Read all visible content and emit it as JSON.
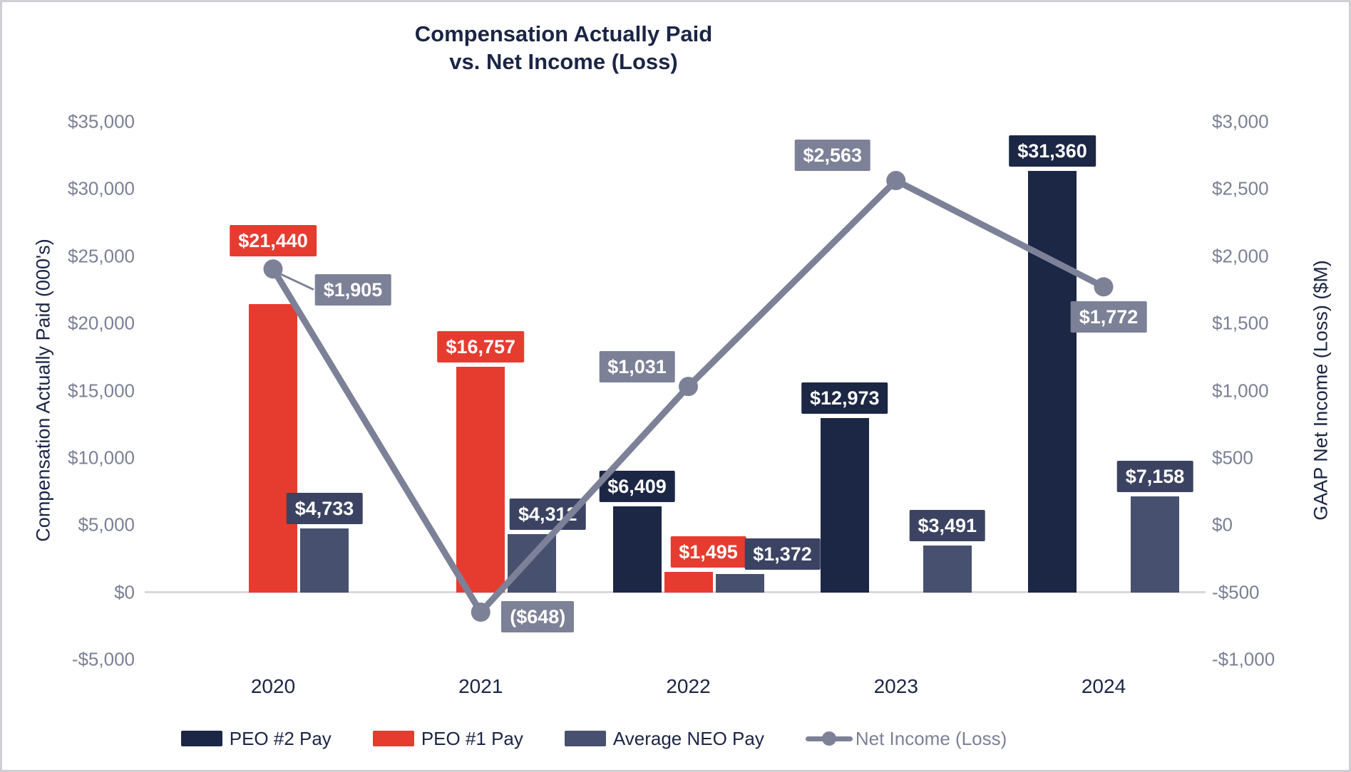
{
  "chart_data": {
    "type": "bar+line",
    "title": {
      "line1": "Compensation Actually Paid",
      "line2": "vs. Net Income (Loss)"
    },
    "categories": [
      "2020",
      "2021",
      "2022",
      "2023",
      "2024"
    ],
    "axes": {
      "left": {
        "title": "Compensation Actually Paid (000's)",
        "min": -5000,
        "max": 35000,
        "step": 5000,
        "tick_labels": [
          "$35,000",
          "$30,000",
          "$25,000",
          "$20,000",
          "$15,000",
          "$10,000",
          "$5,000",
          "$0",
          "-$5,000"
        ]
      },
      "right": {
        "title": "GAAP Net Income (Loss) ($M)",
        "min": -1000,
        "max": 3000,
        "step": 500,
        "tick_labels": [
          "$3,000",
          "$2,500",
          "$2,000",
          "$1,500",
          "$1,000",
          "$500",
          "$0",
          "-$500",
          "-$1,000"
        ]
      }
    },
    "series": [
      {
        "name": "PEO #2 Pay",
        "type": "bar",
        "axis": "left",
        "color": "#1c2745",
        "label_bg": "#1c2745",
        "values": [
          null,
          null,
          6409,
          12973,
          31360
        ],
        "value_labels": [
          null,
          null,
          "$6,409",
          "$12,973",
          "$31,360"
        ]
      },
      {
        "name": "PEO #1 Pay",
        "type": "bar",
        "axis": "left",
        "color": "#e63c30",
        "label_bg": "#e63c30",
        "values": [
          21440,
          16757,
          1495,
          null,
          null
        ],
        "value_labels": [
          "$21,440",
          "$16,757",
          "$1,495",
          null,
          null
        ]
      },
      {
        "name": "Average NEO Pay",
        "type": "bar",
        "axis": "left",
        "color": "#47506e",
        "label_bg": "#3c4362",
        "values": [
          4733,
          4312,
          1372,
          3491,
          7158
        ],
        "value_labels": [
          "$4,733",
          "$4,312",
          "$1,372",
          "$3,491",
          "$7,158"
        ]
      },
      {
        "name": "Net Income (Loss)",
        "type": "line",
        "axis": "right",
        "color": "#7d8197",
        "label_bg": "#7d8197",
        "values": [
          1905,
          -648,
          1031,
          2563,
          1772
        ],
        "value_labels": [
          "$1,905",
          "($648)",
          "$1,031",
          "$2,563",
          "$1,772"
        ]
      }
    ],
    "legend": {
      "position": "bottom",
      "items": [
        "PEO #2 Pay",
        "PEO #1 Pay",
        "Average NEO Pay",
        "Net Income (Loss)"
      ]
    },
    "grid": "off",
    "colors": {
      "navy_text": "#1b2545",
      "tick_text": "#7c8095",
      "gray_line": "#7d8197",
      "zero_line": "#d9d9dc",
      "background": "#ffffff",
      "border": "#cfcfd4"
    }
  }
}
